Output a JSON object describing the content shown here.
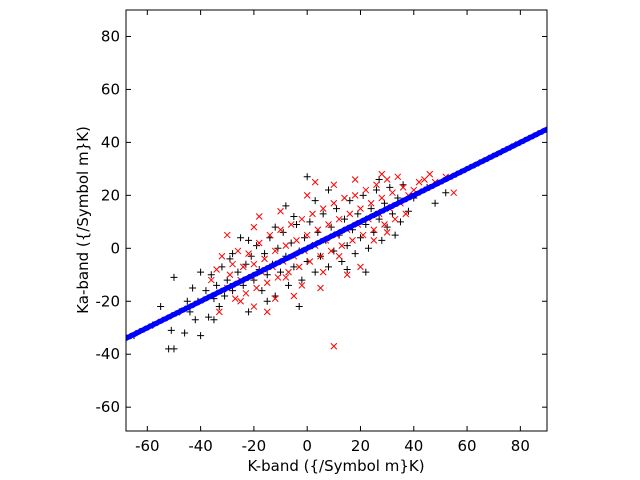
{
  "chart_data": {
    "type": "scatter",
    "title": "",
    "xlabel": "K-band ({/Symbol m}K)",
    "ylabel": "Ka-band ({/Symbol m}K)",
    "xlim": [
      -68,
      90
    ],
    "ylim": [
      -69,
      90
    ],
    "xticks": [
      -60,
      -40,
      -20,
      0,
      20,
      40,
      60,
      80
    ],
    "yticks": [
      -60,
      -40,
      -20,
      0,
      20,
      40,
      60,
      80
    ],
    "xtick_labels": [
      "-60",
      "-40",
      "-20",
      "0",
      "20",
      "40",
      "60",
      "80"
    ],
    "ytick_labels": [
      "-60",
      "-40",
      "-20",
      "0",
      "20",
      "40",
      "60",
      "80"
    ],
    "grid": false,
    "legend": "none",
    "series": [
      {
        "marker": "plus",
        "color": "#000000",
        "points": [
          [
            -65,
            -33
          ],
          [
            -58,
            -29
          ],
          [
            -55,
            -22
          ],
          [
            -52,
            -38
          ],
          [
            -51,
            -31
          ],
          [
            -50,
            -38
          ],
          [
            -50,
            -11
          ],
          [
            -48,
            -24
          ],
          [
            -46,
            -32
          ],
          [
            -45,
            -20
          ],
          [
            -44,
            -24
          ],
          [
            -43,
            -15
          ],
          [
            -42,
            -27
          ],
          [
            -41,
            -20
          ],
          [
            -40,
            -33
          ],
          [
            -40,
            -9
          ],
          [
            -38,
            -16
          ],
          [
            -37,
            -26
          ],
          [
            -36,
            -10
          ],
          [
            -35,
            -19
          ],
          [
            -34,
            -14
          ],
          [
            -33,
            -22
          ],
          [
            -32,
            -7
          ],
          [
            -31,
            -18
          ],
          [
            -30,
            -12
          ],
          [
            -29,
            -4
          ],
          [
            -28,
            -16
          ],
          [
            -26,
            -9
          ],
          [
            -25,
            4
          ],
          [
            -24,
            -14
          ],
          [
            -23,
            -6
          ],
          [
            -22,
            -24
          ],
          [
            -21,
            -3
          ],
          [
            -20,
            -12
          ],
          [
            -19,
            1
          ],
          [
            -18,
            -8
          ],
          [
            -17,
            -16
          ],
          [
            -16,
            -2
          ],
          [
            -15,
            -10
          ],
          [
            -14,
            4
          ],
          [
            -13,
            -6
          ],
          [
            -12,
            -18
          ],
          [
            -11,
            0
          ],
          [
            -10,
            -9
          ],
          [
            -9,
            6
          ],
          [
            -8,
            -3
          ],
          [
            -7,
            -14
          ],
          [
            -6,
            2
          ],
          [
            -5,
            -7
          ],
          [
            -4,
            9
          ],
          [
            -3,
            -1
          ],
          [
            -2,
            -12
          ],
          [
            -1,
            4
          ],
          [
            0,
            -5
          ],
          [
            1,
            10
          ],
          [
            2,
            1
          ],
          [
            3,
            -9
          ],
          [
            4,
            6
          ],
          [
            5,
            -3
          ],
          [
            6,
            13
          ],
          [
            7,
            3
          ],
          [
            8,
            -7
          ],
          [
            9,
            8
          ],
          [
            10,
            -1
          ],
          [
            11,
            15
          ],
          [
            12,
            5
          ],
          [
            13,
            -5
          ],
          [
            14,
            11
          ],
          [
            15,
            1
          ],
          [
            16,
            18
          ],
          [
            17,
            7
          ],
          [
            18,
            -2
          ],
          [
            19,
            13
          ],
          [
            20,
            4
          ],
          [
            21,
            20
          ],
          [
            22,
            9
          ],
          [
            23,
            0
          ],
          [
            24,
            15
          ],
          [
            25,
            6
          ],
          [
            26,
            22
          ],
          [
            27,
            11
          ],
          [
            28,
            3
          ],
          [
            29,
            17
          ],
          [
            30,
            8
          ],
          [
            31,
            23
          ],
          [
            32,
            13
          ],
          [
            33,
            5
          ],
          [
            34,
            19
          ],
          [
            35,
            10
          ],
          [
            36,
            24
          ],
          [
            38,
            14
          ],
          [
            40,
            19
          ],
          [
            45,
            23
          ],
          [
            48,
            17
          ],
          [
            52,
            21
          ],
          [
            -5,
            12
          ],
          [
            3,
            18
          ],
          [
            -12,
            8
          ],
          [
            8,
            22
          ],
          [
            -22,
            3
          ],
          [
            0,
            27
          ],
          [
            -35,
            -27
          ],
          [
            -28,
            -2
          ],
          [
            15,
            -8
          ],
          [
            22,
            -9
          ],
          [
            -3,
            -22
          ],
          [
            -8,
            16
          ],
          [
            -15,
            -20
          ],
          [
            27,
            26
          ]
        ]
      },
      {
        "marker": "x",
        "color": "#ff0000",
        "points": [
          [
            -36,
            -12
          ],
          [
            -34,
            -8
          ],
          [
            -33,
            -24
          ],
          [
            -32,
            -3
          ],
          [
            -30,
            -15
          ],
          [
            -29,
            -10
          ],
          [
            -28,
            -6
          ],
          [
            -27,
            -19
          ],
          [
            -26,
            -1
          ],
          [
            -25,
            -12
          ],
          [
            -24,
            -7
          ],
          [
            -23,
            -17
          ],
          [
            -22,
            -2
          ],
          [
            -21,
            -11
          ],
          [
            -20,
            -6
          ],
          [
            -19,
            -15
          ],
          [
            -18,
            2
          ],
          [
            -17,
            -9
          ],
          [
            -16,
            -4
          ],
          [
            -15,
            -13
          ],
          [
            -14,
            5
          ],
          [
            -13,
            -7
          ],
          [
            -12,
            -1
          ],
          [
            -11,
            -11
          ],
          [
            -10,
            7
          ],
          [
            -9,
            -5
          ],
          [
            -8,
            1
          ],
          [
            -7,
            -9
          ],
          [
            -6,
            9
          ],
          [
            -5,
            -3
          ],
          [
            -4,
            3
          ],
          [
            -3,
            -7
          ],
          [
            -2,
            11
          ],
          [
            -1,
            -1
          ],
          [
            0,
            5
          ],
          [
            1,
            -5
          ],
          [
            2,
            13
          ],
          [
            3,
            1
          ],
          [
            4,
            7
          ],
          [
            5,
            -3
          ],
          [
            6,
            15
          ],
          [
            7,
            3
          ],
          [
            8,
            9
          ],
          [
            9,
            -1
          ],
          [
            10,
            17
          ],
          [
            11,
            5
          ],
          [
            12,
            11
          ],
          [
            13,
            1
          ],
          [
            14,
            19
          ],
          [
            15,
            7
          ],
          [
            16,
            13
          ],
          [
            17,
            3
          ],
          [
            18,
            20
          ],
          [
            19,
            9
          ],
          [
            20,
            15
          ],
          [
            21,
            5
          ],
          [
            22,
            22
          ],
          [
            23,
            11
          ],
          [
            24,
            17
          ],
          [
            25,
            7
          ],
          [
            26,
            24
          ],
          [
            27,
            13
          ],
          [
            28,
            19
          ],
          [
            29,
            9
          ],
          [
            30,
            26
          ],
          [
            31,
            15
          ],
          [
            32,
            21
          ],
          [
            33,
            11
          ],
          [
            34,
            27
          ],
          [
            35,
            17
          ],
          [
            36,
            23
          ],
          [
            37,
            13
          ],
          [
            38,
            20
          ],
          [
            40,
            22
          ],
          [
            42,
            25
          ],
          [
            44,
            26
          ],
          [
            46,
            28
          ],
          [
            48,
            25
          ],
          [
            52,
            27
          ],
          [
            55,
            21
          ],
          [
            -20,
            8
          ],
          [
            -10,
            14
          ],
          [
            0,
            20
          ],
          [
            10,
            24
          ],
          [
            -25,
            -20
          ],
          [
            -15,
            -24
          ],
          [
            5,
            -15
          ],
          [
            15,
            -10
          ],
          [
            20,
            -7
          ],
          [
            10,
            -37
          ],
          [
            -30,
            5
          ],
          [
            -5,
            -18
          ],
          [
            25,
            3
          ],
          [
            -20,
            -22
          ],
          [
            30,
            6
          ],
          [
            -8,
            -11
          ],
          [
            6,
            -9
          ],
          [
            18,
            26
          ],
          [
            -2,
            -14
          ],
          [
            12,
            -3
          ],
          [
            -18,
            12
          ],
          [
            28,
            28
          ],
          [
            -12,
            -19
          ],
          [
            3,
            25
          ]
        ]
      },
      {
        "marker": "dot-line",
        "color": "#0000ff",
        "slope": 0.5,
        "intercept": 0,
        "x_range": [
          -68,
          90
        ]
      }
    ]
  }
}
